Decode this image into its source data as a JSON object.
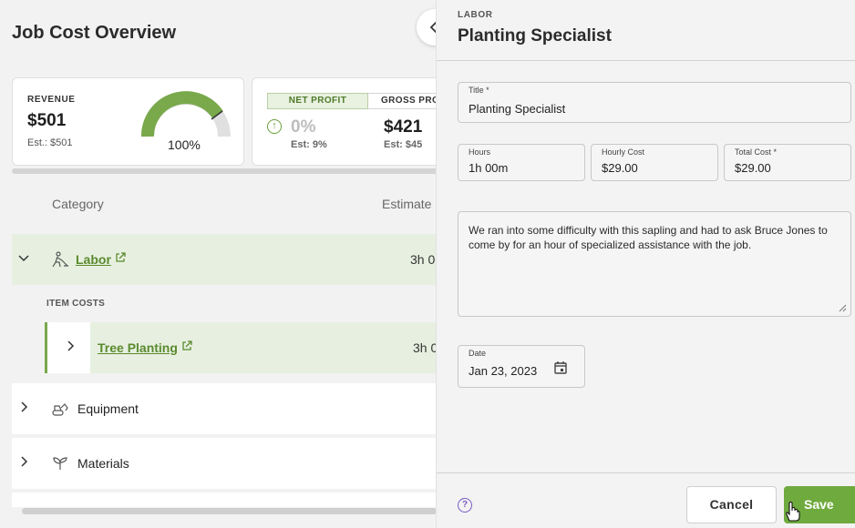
{
  "page": {
    "title": "Job Cost Overview"
  },
  "revenue_card": {
    "label": "REVENUE",
    "value": "$501",
    "estimate": "Est.:  $501",
    "gauge_percent_text": "100%",
    "gauge_fraction": 1.0
  },
  "profit_card": {
    "tabs": [
      "NET PROFIT",
      "GROSS PRO"
    ],
    "net_profit_value": "0%",
    "net_profit_estimate": "Est: 9%",
    "gross_profit_value": "$421",
    "gross_profit_estimate": "Est: $45"
  },
  "table": {
    "columns": [
      "Category",
      "Estimate"
    ],
    "rows": {
      "labor": {
        "label": "Labor",
        "estimate": "3h 0"
      },
      "item_costs_header": "ITEM COSTS",
      "tree_planting": {
        "label": "Tree Planting",
        "estimate": "3h 0"
      },
      "equipment": {
        "label": "Equipment"
      },
      "materials": {
        "label": "Materials"
      }
    }
  },
  "drawer": {
    "kicker": "LABOR",
    "title": "Planting Specialist",
    "fields": {
      "title": {
        "label": "Title *",
        "value": "Planting Specialist"
      },
      "hours": {
        "label": "Hours",
        "value": "1h 00m"
      },
      "hourly_cost": {
        "label": "Hourly Cost",
        "value": "$29.00"
      },
      "total_cost": {
        "label": "Total Cost *",
        "value": "$29.00"
      },
      "notes": {
        "value": "We ran into some difficulty with this sapling and had to ask Bruce Jones to come by for an hour of specialized assistance with the job."
      },
      "date": {
        "label": "Date",
        "value": "Jan 23, 2023"
      }
    },
    "footer": {
      "help_symbol": "?",
      "cancel_label": "Cancel",
      "save_label": "Save"
    }
  },
  "colors": {
    "accent_green": "#6faa3e",
    "link_green": "#5a8a2e",
    "row_highlight": "#e7f0e0",
    "help_purple": "#7a5bc4"
  },
  "icons": [
    "chevron-left-icon",
    "arrow-up-circle-icon",
    "chevron-down-icon",
    "chevron-right-icon",
    "worker-icon",
    "external-link-icon",
    "excavator-icon",
    "sprout-icon",
    "calendar-icon",
    "help-icon",
    "pointer-cursor-icon"
  ]
}
